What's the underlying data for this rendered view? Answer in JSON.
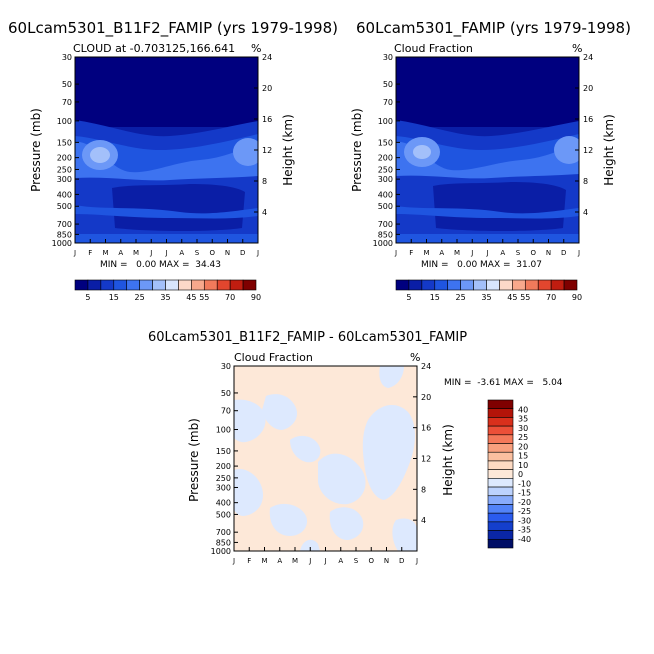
{
  "months": [
    "J",
    "F",
    "M",
    "A",
    "M",
    "J",
    "J",
    "A",
    "S",
    "O",
    "N",
    "D",
    "J"
  ],
  "pressure_ticks": [
    30,
    50,
    70,
    100,
    150,
    200,
    250,
    300,
    400,
    500,
    700,
    850,
    1000
  ],
  "height_ticks": [
    4,
    8,
    12,
    16,
    20,
    24
  ],
  "labels": {
    "pressure_axis": "Pressure (mb)",
    "height_axis": "Height (km)",
    "units": "%"
  },
  "colors": {
    "cloud_scale": [
      "#00007f",
      "#0a1ea6",
      "#1439c8",
      "#1f55e0",
      "#3d73f0",
      "#6c98f7",
      "#a3c0fa",
      "#d8e5fd",
      "#fdd8c8",
      "#f8a88c",
      "#f17a5b",
      "#e2462e",
      "#c01d10",
      "#7f0000"
    ],
    "diff_scale": [
      "#000e66",
      "#0a26a6",
      "#143fcc",
      "#2a5bee",
      "#5283f8",
      "#88abfb",
      "#bcd2fd",
      "#dde9fe",
      "#fde8d8",
      "#fddac2",
      "#fbc0a0",
      "#f8a07e",
      "#f4795a",
      "#ec5038",
      "#d9301c",
      "#b31409",
      "#7f0000"
    ]
  },
  "colorbar_cloud": {
    "labels": [
      "5",
      "15",
      "25",
      "35",
      "45",
      "55",
      "70",
      "90"
    ]
  },
  "colorbar_diff": {
    "labels": [
      "40",
      "35",
      "30",
      "25",
      "20",
      "15",
      "10",
      "0",
      "-10",
      "-15",
      "-20",
      "-25",
      "-30",
      "-35",
      "-40"
    ]
  },
  "chart_data": [
    {
      "type": "heatmap",
      "title": "60Lcam5301_B11F2_FAMIP (yrs 1979-1998)",
      "subtitle": "CLOUD at -0.703125,166.641",
      "xlabel": "",
      "ylabel": "Pressure (mb)",
      "y2label": "Height (km)",
      "units": "%",
      "stats": "MIN =   0.00 MAX =  34.43",
      "min": 0.0,
      "max": 34.43
    },
    {
      "type": "heatmap",
      "title": "60Lcam5301_FAMIP (yrs 1979-1998)",
      "subtitle": "Cloud Fraction",
      "xlabel": "",
      "ylabel": "Pressure (mb)",
      "y2label": "Height (km)",
      "units": "%",
      "stats": "MIN =   0.00 MAX =  31.07",
      "min": 0.0,
      "max": 31.07
    },
    {
      "type": "heatmap",
      "title": "60Lcam5301_B11F2_FAMIP - 60Lcam5301_FAMIP",
      "subtitle": "Cloud Fraction",
      "xlabel": "",
      "ylabel": "Pressure (mb)",
      "y2label": "Height (km)",
      "units": "%",
      "stats": "MIN =  -3.61 MAX =   5.04",
      "min": -3.61,
      "max": 5.04
    }
  ]
}
